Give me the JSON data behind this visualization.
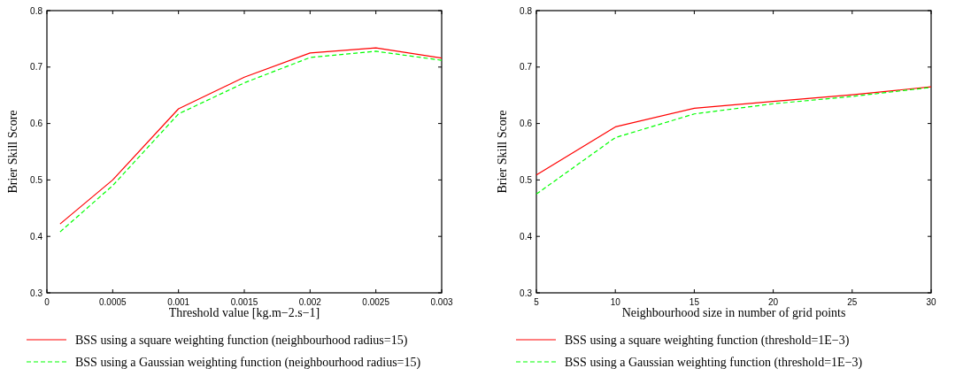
{
  "chart_data": [
    {
      "type": "line",
      "xlabel": "Threshold value [kg.m−2.s−1]",
      "ylabel": "Brier Skill Score",
      "x": [
        0.0001,
        0.0005,
        0.001,
        0.0015,
        0.002,
        0.0025,
        0.003
      ],
      "xlim": [
        0,
        0.003
      ],
      "xticks": [
        0,
        0.0005,
        0.001,
        0.0015,
        0.002,
        0.0025,
        0.003
      ],
      "ylim": [
        0.3,
        0.8
      ],
      "yticks": [
        0.3,
        0.4,
        0.5,
        0.6,
        0.7,
        0.8
      ],
      "legend": "bottom",
      "grid": false,
      "series": [
        {
          "name": "BSS using a square weighting function (neighbourhood radius=15)",
          "color": "#ff0000",
          "line_style": "solid",
          "values": [
            0.422,
            0.5,
            0.626,
            0.682,
            0.725,
            0.734,
            0.716
          ]
        },
        {
          "name": "BSS using a Gaussian weighting function (neighbourhood radius=15)",
          "color": "#00ff00",
          "line_style": "dashed",
          "values": [
            0.408,
            0.49,
            0.617,
            0.672,
            0.717,
            0.728,
            0.712
          ]
        }
      ]
    },
    {
      "type": "line",
      "xlabel": "Neighbourhood size in number of grid points",
      "ylabel": "Brier Skill Score",
      "x": [
        5,
        10,
        15,
        20,
        25,
        30
      ],
      "xlim": [
        5,
        30
      ],
      "xticks": [
        5,
        10,
        15,
        20,
        25,
        30
      ],
      "ylim": [
        0.3,
        0.8
      ],
      "yticks": [
        0.3,
        0.4,
        0.5,
        0.6,
        0.7,
        0.8
      ],
      "legend": "bottom",
      "grid": false,
      "series": [
        {
          "name": "BSS using a square weighting function (threshold=1E−3)",
          "color": "#ff0000",
          "line_style": "solid",
          "values": [
            0.509,
            0.594,
            0.627,
            0.639,
            0.651,
            0.665
          ]
        },
        {
          "name": "BSS using a Gaussian weighting function (threshold=1E−3)",
          "color": "#00ff00",
          "line_style": "dashed",
          "values": [
            0.475,
            0.575,
            0.617,
            0.635,
            0.648,
            0.664
          ]
        }
      ]
    }
  ]
}
